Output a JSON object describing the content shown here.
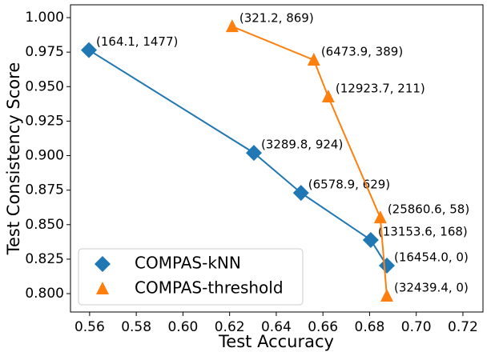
{
  "chart_data": {
    "type": "line",
    "xlabel": "Test Accuracy",
    "ylabel": "Test Consistency Score",
    "xlim": [
      0.5518,
      0.7286
    ],
    "ylim": [
      0.7867,
      1.0093
    ],
    "xticks": [
      0.56,
      0.58,
      0.6,
      0.62,
      0.64,
      0.66,
      0.68,
      0.7,
      0.72
    ],
    "xtick_labels": [
      "0.56",
      "0.58",
      "0.60",
      "0.62",
      "0.64",
      "0.66",
      "0.68",
      "0.70",
      "0.72"
    ],
    "yticks": [
      0.8,
      0.825,
      0.85,
      0.875,
      0.9,
      0.925,
      0.95,
      0.975,
      1.0
    ],
    "ytick_labels": [
      "0.800",
      "0.825",
      "0.850",
      "0.875",
      "0.900",
      "0.925",
      "0.950",
      "0.975",
      "1.000"
    ],
    "legend": "lower left",
    "series": [
      {
        "name": "COMPAS-kNN",
        "color": "#1f77b4",
        "marker": "diamond",
        "x": [
          0.5597,
          0.6304,
          0.6506,
          0.6805,
          0.6874
        ],
        "values": [
          0.9765,
          0.902,
          0.873,
          0.8389,
          0.8203
        ],
        "point_labels": [
          "(164.1, 1477)",
          "(3289.8, 924)",
          "(6578.9, 629)",
          "(13153.6, 168)",
          "(16454.0, 0)"
        ]
      },
      {
        "name": "COMPAS-threshold",
        "color": "#ff7f0e",
        "marker": "triangle",
        "x": [
          0.6211,
          0.6561,
          0.6623,
          0.6846,
          0.6874
        ],
        "values": [
          0.9936,
          0.9693,
          0.9426,
          0.855,
          0.7983
        ],
        "point_labels": [
          "(321.2, 869)",
          "(6473.9, 389)",
          "(12923.7, 211)",
          "(25860.6, 58)",
          "(32439.4, 0)"
        ]
      }
    ]
  }
}
